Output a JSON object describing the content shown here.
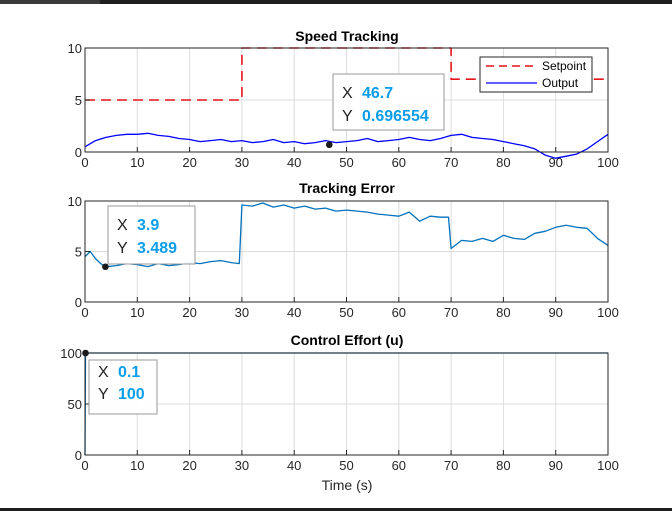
{
  "chart_data": [
    {
      "type": "line",
      "title": "Speed Tracking",
      "xlabel": "",
      "ylabel": "",
      "xlim": [
        0,
        100
      ],
      "ylim": [
        0,
        10
      ],
      "xticks": [
        0,
        10,
        20,
        30,
        40,
        50,
        60,
        70,
        80,
        90,
        100
      ],
      "yticks": [
        0,
        5,
        10
      ],
      "grid": true,
      "legend_location": "top-right",
      "series": [
        {
          "name": "Setpoint",
          "color": "#e8141a",
          "style": "dashed",
          "x": [
            0,
            30,
            30,
            70,
            70,
            100
          ],
          "y": [
            5,
            5,
            10,
            10,
            7,
            7
          ]
        },
        {
          "name": "Output",
          "color": "#0000ff",
          "style": "solid",
          "x": [
            0,
            2,
            4,
            6,
            8,
            10,
            12,
            14,
            16,
            18,
            20,
            22,
            24,
            26,
            28,
            30,
            32,
            34,
            36,
            38,
            40,
            42,
            44,
            46,
            48,
            50,
            52,
            54,
            56,
            58,
            60,
            62,
            64,
            66,
            68,
            70,
            72,
            74,
            76,
            78,
            80,
            82,
            84,
            86,
            88,
            90,
            92,
            94,
            96,
            98,
            100
          ],
          "y": [
            0.5,
            1.1,
            1.4,
            1.6,
            1.7,
            1.7,
            1.8,
            1.6,
            1.5,
            1.3,
            1.2,
            1.0,
            1.1,
            1.2,
            1.0,
            1.1,
            0.9,
            1.0,
            1.2,
            0.9,
            1.0,
            0.8,
            0.9,
            1.1,
            0.9,
            1.0,
            1.1,
            1.3,
            1.0,
            1.1,
            1.2,
            1.4,
            1.2,
            1.1,
            1.3,
            1.6,
            1.7,
            1.4,
            1.3,
            1.2,
            1.0,
            0.8,
            0.6,
            0.3,
            -0.3,
            -0.6,
            -0.4,
            -0.2,
            0.3,
            1.0,
            1.7
          ]
        }
      ],
      "datatip": {
        "x_label": "X",
        "x_value": "46.7",
        "y_label": "Y",
        "y_value": "0.696554",
        "x": 46.7,
        "y": 0.696554
      }
    },
    {
      "type": "line",
      "title": "Tracking Error",
      "xlabel": "",
      "ylabel": "",
      "xlim": [
        0,
        100
      ],
      "ylim": [
        0,
        10
      ],
      "xticks": [
        0,
        10,
        20,
        30,
        40,
        50,
        60,
        70,
        80,
        90,
        100
      ],
      "yticks": [
        0,
        5,
        10
      ],
      "grid": true,
      "series": [
        {
          "color": "#0072bd",
          "style": "solid",
          "x": [
            0,
            1,
            2,
            3,
            3.9,
            6,
            8,
            10,
            12,
            14,
            16,
            18,
            20,
            22,
            24,
            26,
            28,
            29.5,
            30,
            32,
            34,
            36,
            38,
            40,
            42,
            44,
            46,
            48,
            50,
            52,
            54,
            56,
            58,
            60,
            62,
            64,
            66,
            68,
            69.5,
            70,
            72,
            74,
            76,
            78,
            80,
            82,
            84,
            86,
            88,
            90,
            92,
            94,
            96,
            98,
            100
          ],
          "y": [
            4.5,
            5.0,
            4.3,
            3.8,
            3.489,
            3.6,
            3.8,
            3.7,
            3.5,
            3.8,
            3.6,
            3.7,
            3.9,
            3.8,
            4.0,
            4.1,
            3.9,
            3.8,
            9.6,
            9.5,
            9.8,
            9.4,
            9.6,
            9.3,
            9.5,
            9.2,
            9.3,
            9.0,
            9.1,
            9.0,
            8.9,
            8.7,
            8.6,
            8.5,
            8.9,
            8.0,
            8.5,
            8.4,
            8.4,
            5.3,
            6.1,
            6.0,
            6.3,
            6.0,
            6.6,
            6.3,
            6.2,
            6.8,
            7.0,
            7.4,
            7.6,
            7.4,
            7.3,
            6.3,
            5.6
          ]
        }
      ],
      "datatip": {
        "x_label": "X",
        "x_value": "3.9",
        "y_label": "Y",
        "y_value": "3.489",
        "x": 3.9,
        "y": 3.489
      }
    },
    {
      "type": "line",
      "title": "Control Effort (u)",
      "xlabel": "Time (s)",
      "ylabel": "",
      "xlim": [
        0,
        100
      ],
      "ylim": [
        0,
        100
      ],
      "xticks": [
        0,
        10,
        20,
        30,
        40,
        50,
        60,
        70,
        80,
        90,
        100
      ],
      "yticks": [
        0,
        50,
        100
      ],
      "grid": true,
      "series": [
        {
          "color": "#0072bd",
          "style": "solid",
          "x": [
            0,
            0.1,
            100
          ],
          "y": [
            0,
            100,
            100
          ]
        }
      ],
      "datatip": {
        "x_label": "X",
        "x_value": "0.1",
        "y_label": "Y",
        "y_value": "100",
        "x": 0.1,
        "y": 100
      }
    }
  ]
}
